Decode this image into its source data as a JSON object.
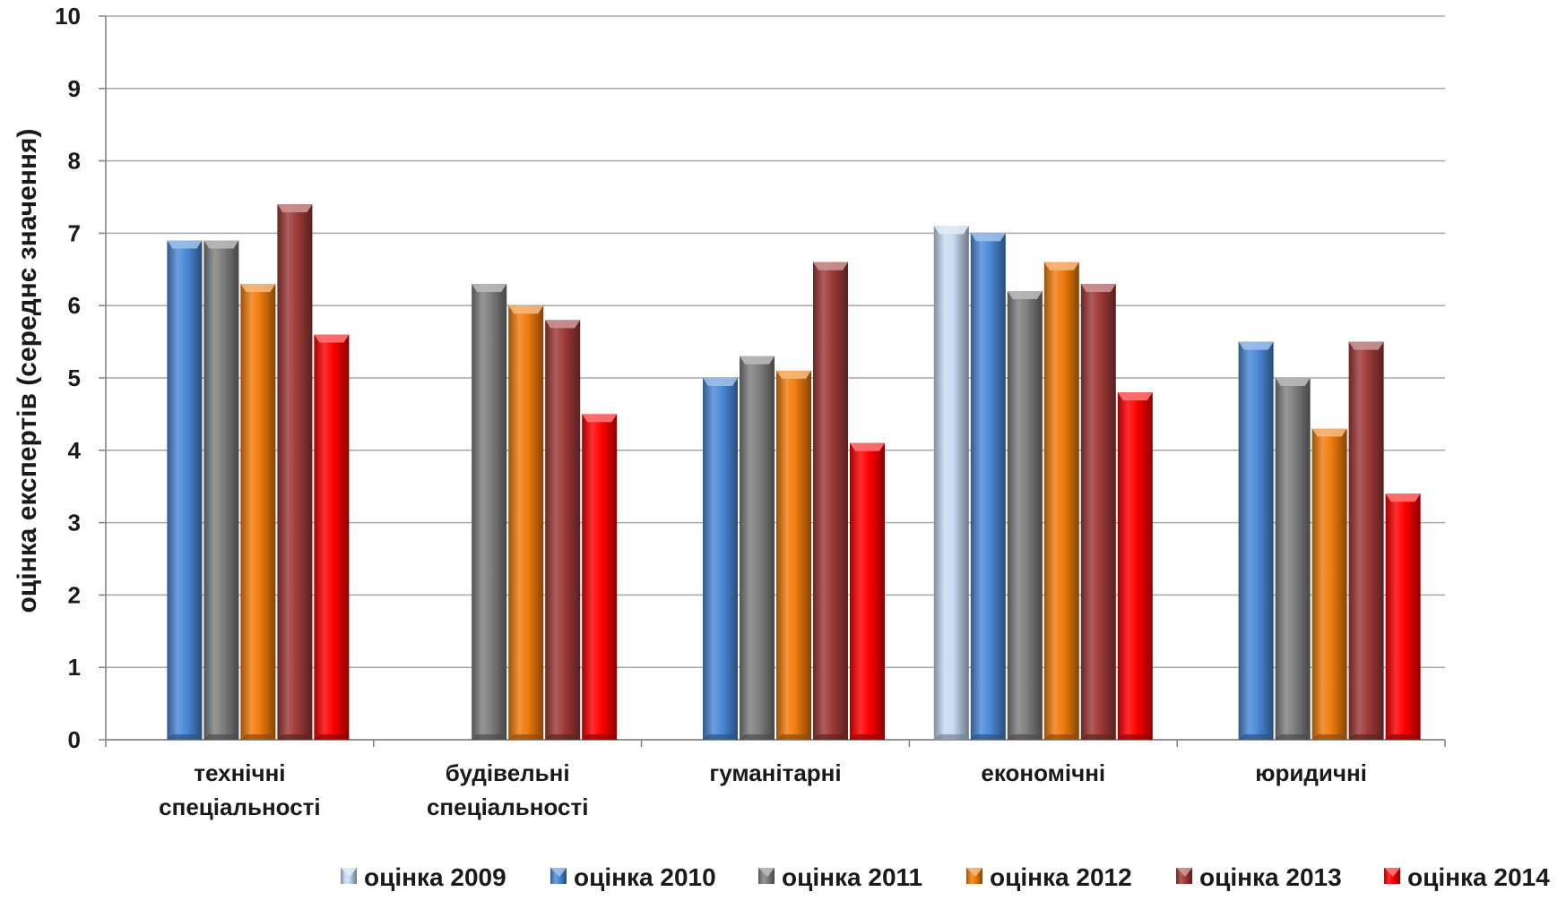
{
  "chart_data": {
    "type": "bar",
    "title": "",
    "xlabel": "",
    "ylabel": "оцінка експертів (середнє значення)",
    "ylim": [
      0,
      10
    ],
    "yticks": [
      "0",
      "1",
      "2",
      "3",
      "4",
      "5",
      "6",
      "7",
      "8",
      "9",
      "10"
    ],
    "grid": true,
    "legend_position": "bottom",
    "categories": [
      [
        "технічні",
        "спеціальності"
      ],
      [
        "будівельні",
        "спеціальності"
      ],
      [
        "гуманітарні"
      ],
      [
        "економічні"
      ],
      [
        "юридичні"
      ]
    ],
    "series": [
      {
        "name": "оцінка 2009",
        "color": "#c6dbf1",
        "values": [
          null,
          null,
          null,
          7.1,
          null
        ]
      },
      {
        "name": "оцінка 2010",
        "color": "#4a8ad8",
        "values": [
          6.9,
          null,
          5.0,
          7.0,
          5.5
        ]
      },
      {
        "name": "оцінка 2011",
        "color": "#7f7f7f",
        "values": [
          6.9,
          6.3,
          5.3,
          6.2,
          5.0
        ]
      },
      {
        "name": "оцінка 2012",
        "color": "#f07c0d",
        "values": [
          6.3,
          6.0,
          5.1,
          6.6,
          4.3
        ]
      },
      {
        "name": "оцінка 2013",
        "color": "#9e3a38",
        "values": [
          7.4,
          5.8,
          6.6,
          6.3,
          5.5
        ]
      },
      {
        "name": "оцінка 2014",
        "color": "#ff0000",
        "values": [
          5.6,
          4.5,
          4.1,
          4.8,
          3.4
        ]
      }
    ]
  }
}
